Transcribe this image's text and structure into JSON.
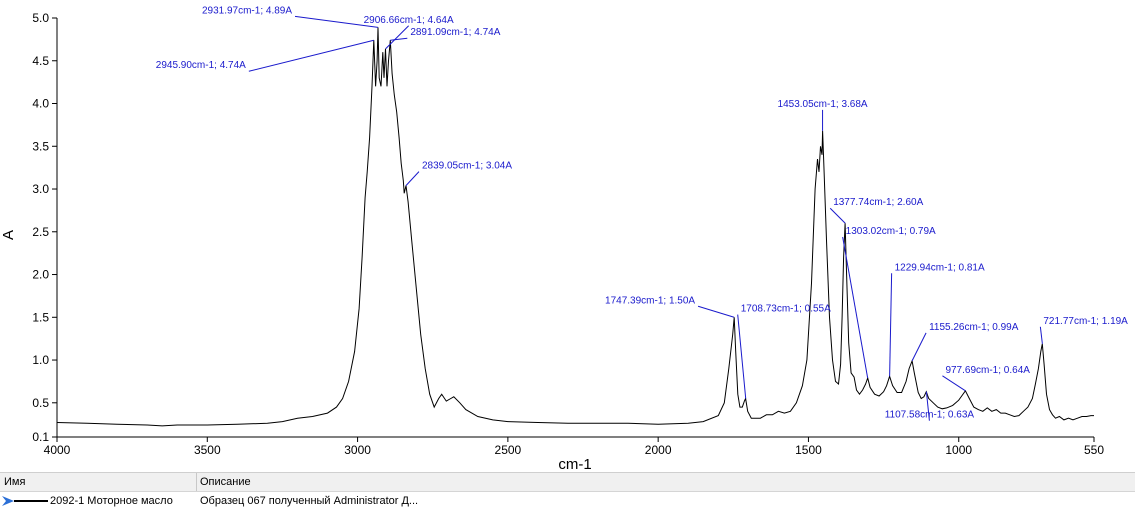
{
  "chart_data": {
    "type": "line",
    "xlabel": "cm-1",
    "ylabel": "A",
    "xlim": [
      4000,
      550
    ],
    "ylim": [
      0.1,
      5.0
    ],
    "x_reversed": true,
    "grid": false,
    "x_ticks": [
      4000,
      3500,
      3000,
      2500,
      2000,
      1500,
      1000,
      550
    ],
    "x_tick_labels": [
      "4000",
      "3500",
      "3000",
      "2500",
      "2000",
      "1500",
      "1000",
      "550"
    ],
    "y_ticks": [
      0.1,
      0.5,
      1.0,
      1.5,
      2.0,
      2.5,
      3.0,
      3.5,
      4.0,
      4.5,
      5.0
    ],
    "y_tick_labels": [
      "0.1",
      "0.5",
      "1.0",
      "1.5",
      "2.0",
      "2.5",
      "3.0",
      "3.5",
      "4.0",
      "4.5",
      "5.0"
    ],
    "series": [
      {
        "name": "2092-1 Моторное масло",
        "color": "#000000",
        "points": [
          [
            4000,
            0.27
          ],
          [
            3900,
            0.26
          ],
          [
            3800,
            0.25
          ],
          [
            3700,
            0.24
          ],
          [
            3650,
            0.23
          ],
          [
            3600,
            0.24
          ],
          [
            3500,
            0.24
          ],
          [
            3400,
            0.25
          ],
          [
            3300,
            0.26
          ],
          [
            3250,
            0.28
          ],
          [
            3200,
            0.32
          ],
          [
            3150,
            0.34
          ],
          [
            3100,
            0.38
          ],
          [
            3070,
            0.45
          ],
          [
            3050,
            0.55
          ],
          [
            3030,
            0.75
          ],
          [
            3010,
            1.1
          ],
          [
            2995,
            1.6
          ],
          [
            2985,
            2.2
          ],
          [
            2975,
            2.9
          ],
          [
            2968,
            3.2
          ],
          [
            2960,
            3.6
          ],
          [
            2952,
            4.2
          ],
          [
            2946,
            4.74
          ],
          [
            2940,
            4.2
          ],
          [
            2935,
            4.5
          ],
          [
            2932,
            4.89
          ],
          [
            2928,
            4.3
          ],
          [
            2922,
            4.2
          ],
          [
            2916,
            4.6
          ],
          [
            2912,
            4.3
          ],
          [
            2907,
            4.64
          ],
          [
            2902,
            4.2
          ],
          [
            2897,
            4.5
          ],
          [
            2891,
            4.74
          ],
          [
            2885,
            4.35
          ],
          [
            2878,
            4.1
          ],
          [
            2870,
            3.9
          ],
          [
            2862,
            3.6
          ],
          [
            2855,
            3.3
          ],
          [
            2848,
            3.1
          ],
          [
            2845,
            2.95
          ],
          [
            2839,
            3.04
          ],
          [
            2832,
            2.85
          ],
          [
            2820,
            2.4
          ],
          [
            2805,
            1.85
          ],
          [
            2790,
            1.3
          ],
          [
            2775,
            0.9
          ],
          [
            2760,
            0.6
          ],
          [
            2745,
            0.45
          ],
          [
            2730,
            0.55
          ],
          [
            2720,
            0.6
          ],
          [
            2705,
            0.52
          ],
          [
            2690,
            0.55
          ],
          [
            2680,
            0.57
          ],
          [
            2660,
            0.5
          ],
          [
            2640,
            0.42
          ],
          [
            2600,
            0.34
          ],
          [
            2550,
            0.3
          ],
          [
            2500,
            0.28
          ],
          [
            2400,
            0.27
          ],
          [
            2300,
            0.26
          ],
          [
            2200,
            0.26
          ],
          [
            2100,
            0.26
          ],
          [
            2000,
            0.25
          ],
          [
            1900,
            0.26
          ],
          [
            1850,
            0.28
          ],
          [
            1800,
            0.35
          ],
          [
            1780,
            0.5
          ],
          [
            1765,
            0.9
          ],
          [
            1752,
            1.3
          ],
          [
            1747,
            1.5
          ],
          [
            1742,
            1.1
          ],
          [
            1735,
            0.6
          ],
          [
            1728,
            0.45
          ],
          [
            1720,
            0.45
          ],
          [
            1713,
            0.52
          ],
          [
            1709,
            0.55
          ],
          [
            1702,
            0.4
          ],
          [
            1690,
            0.32
          ],
          [
            1660,
            0.32
          ],
          [
            1640,
            0.36
          ],
          [
            1620,
            0.36
          ],
          [
            1600,
            0.4
          ],
          [
            1580,
            0.38
          ],
          [
            1560,
            0.4
          ],
          [
            1540,
            0.5
          ],
          [
            1520,
            0.7
          ],
          [
            1505,
            1.0
          ],
          [
            1490,
            1.9
          ],
          [
            1478,
            3.0
          ],
          [
            1470,
            3.35
          ],
          [
            1465,
            3.2
          ],
          [
            1460,
            3.5
          ],
          [
            1455,
            3.4
          ],
          [
            1453,
            3.68
          ],
          [
            1448,
            3.2
          ],
          [
            1440,
            2.4
          ],
          [
            1430,
            1.5
          ],
          [
            1420,
            1.0
          ],
          [
            1410,
            0.75
          ],
          [
            1400,
            0.72
          ],
          [
            1393,
            0.95
          ],
          [
            1388,
            1.5
          ],
          [
            1383,
            2.2
          ],
          [
            1378,
            2.6
          ],
          [
            1373,
            2.0
          ],
          [
            1366,
            1.2
          ],
          [
            1358,
            0.85
          ],
          [
            1348,
            0.8
          ],
          [
            1340,
            0.65
          ],
          [
            1330,
            0.6
          ],
          [
            1320,
            0.65
          ],
          [
            1310,
            0.72
          ],
          [
            1303,
            0.79
          ],
          [
            1295,
            0.68
          ],
          [
            1280,
            0.6
          ],
          [
            1265,
            0.58
          ],
          [
            1250,
            0.63
          ],
          [
            1240,
            0.7
          ],
          [
            1230,
            0.81
          ],
          [
            1220,
            0.7
          ],
          [
            1205,
            0.62
          ],
          [
            1190,
            0.62
          ],
          [
            1175,
            0.75
          ],
          [
            1165,
            0.9
          ],
          [
            1155,
            0.99
          ],
          [
            1148,
            0.85
          ],
          [
            1135,
            0.62
          ],
          [
            1125,
            0.55
          ],
          [
            1116,
            0.57
          ],
          [
            1108,
            0.63
          ],
          [
            1100,
            0.55
          ],
          [
            1085,
            0.5
          ],
          [
            1070,
            0.45
          ],
          [
            1055,
            0.43
          ],
          [
            1040,
            0.44
          ],
          [
            1020,
            0.47
          ],
          [
            1000,
            0.53
          ],
          [
            990,
            0.58
          ],
          [
            978,
            0.64
          ],
          [
            965,
            0.55
          ],
          [
            950,
            0.45
          ],
          [
            935,
            0.42
          ],
          [
            920,
            0.4
          ],
          [
            905,
            0.44
          ],
          [
            890,
            0.4
          ],
          [
            875,
            0.42
          ],
          [
            860,
            0.38
          ],
          [
            845,
            0.38
          ],
          [
            830,
            0.36
          ],
          [
            815,
            0.34
          ],
          [
            800,
            0.35
          ],
          [
            785,
            0.4
          ],
          [
            770,
            0.45
          ],
          [
            755,
            0.55
          ],
          [
            745,
            0.72
          ],
          [
            735,
            0.9
          ],
          [
            727,
            1.1
          ],
          [
            722,
            1.19
          ],
          [
            716,
            0.95
          ],
          [
            708,
            0.6
          ],
          [
            698,
            0.42
          ],
          [
            688,
            0.36
          ],
          [
            678,
            0.32
          ],
          [
            665,
            0.34
          ],
          [
            650,
            0.3
          ],
          [
            635,
            0.32
          ],
          [
            620,
            0.3
          ],
          [
            605,
            0.32
          ],
          [
            590,
            0.34
          ],
          [
            575,
            0.34
          ],
          [
            560,
            0.35
          ],
          [
            550,
            0.35
          ]
        ]
      }
    ],
    "annotations": [
      {
        "text": "2931.97cm-1; 4.89A",
        "x": 2931.97,
        "y": 4.89
      },
      {
        "text": "2906.66cm-1; 4.64A",
        "x": 2906.66,
        "y": 4.64
      },
      {
        "text": "2891.09cm-1; 4.74A",
        "x": 2891.09,
        "y": 4.74
      },
      {
        "text": "2945.90cm-1; 4.74A",
        "x": 2945.9,
        "y": 4.74
      },
      {
        "text": "2839.05cm-1; 3.04A",
        "x": 2839.05,
        "y": 3.04
      },
      {
        "text": "1453.05cm-1; 3.68A",
        "x": 1453.05,
        "y": 3.68
      },
      {
        "text": "1377.74cm-1; 2.60A",
        "x": 1377.74,
        "y": 2.6
      },
      {
        "text": "1303.02cm-1; 0.79A",
        "x": 1303.02,
        "y": 0.79
      },
      {
        "text": "1229.94cm-1; 0.81A",
        "x": 1229.94,
        "y": 0.81
      },
      {
        "text": "1708.73cm-1; 0.55A",
        "x": 1708.73,
        "y": 0.55
      },
      {
        "text": "1747.39cm-1; 1.50A",
        "x": 1747.39,
        "y": 1.5
      },
      {
        "text": "1155.26cm-1; 0.99A",
        "x": 1155.26,
        "y": 0.99
      },
      {
        "text": "721.77cm-1; 1.19A",
        "x": 721.77,
        "y": 1.19
      },
      {
        "text": "977.69cm-1; 0.64A",
        "x": 977.69,
        "y": 0.64
      },
      {
        "text": "1107.58cm-1; 0.63A",
        "x": 1107.58,
        "y": 0.63
      }
    ]
  },
  "legend": {
    "col_name": "Имя",
    "col_description": "Описание",
    "rows": [
      {
        "name": "2092-1 Моторное масло",
        "description": "Образец 067 полученный Administrator Д..."
      }
    ]
  },
  "icons": {
    "row_marker": "arrow-icon"
  }
}
